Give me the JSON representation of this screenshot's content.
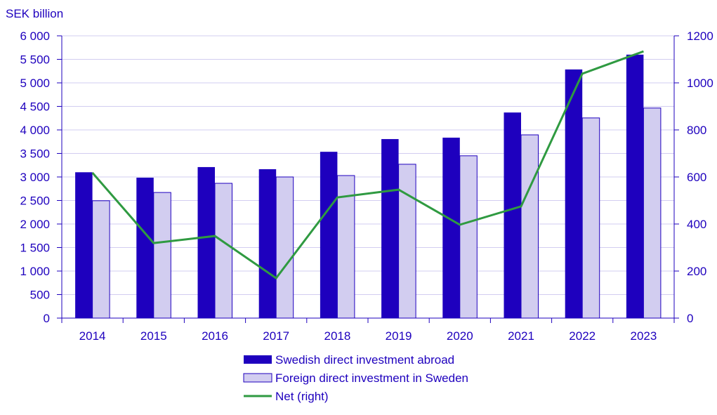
{
  "chart_data": {
    "type": "bar",
    "ylabel": "SEK billion",
    "categories": [
      "2014",
      "2015",
      "2016",
      "2017",
      "2018",
      "2019",
      "2020",
      "2021",
      "2022",
      "2023"
    ],
    "ylim": [
      0,
      6000
    ],
    "y2lim": [
      0,
      1200
    ],
    "yticks": [
      "0",
      "500",
      "1 000",
      "1 500",
      "2 000",
      "2 500",
      "3 000",
      "3 500",
      "4 000",
      "4 500",
      "5 000",
      "5 500",
      "6 000"
    ],
    "y2ticks": [
      "0",
      "200",
      "400",
      "600",
      "800",
      "1000",
      "1200"
    ],
    "grid": true,
    "legend_placement": "bottom",
    "series": [
      {
        "name": "Swedish direct investment abroad",
        "type": "bar",
        "axis": "left",
        "color": "#1e00be",
        "values": [
          3100,
          2985,
          3210,
          3165,
          3535,
          3805,
          3835,
          4370,
          5285,
          5600
        ]
      },
      {
        "name": "Foreign direct investment in Sweden",
        "type": "bar",
        "axis": "left",
        "color": "#d2cdf0",
        "values": [
          2495,
          2670,
          2865,
          3000,
          3030,
          3270,
          3450,
          3895,
          4255,
          4465
        ]
      },
      {
        "name": "Net (right)",
        "type": "line",
        "axis": "right",
        "color": "#2f9a41",
        "values": [
          618,
          319,
          349,
          170,
          513,
          546,
          397,
          475,
          1039,
          1134
        ]
      }
    ]
  }
}
